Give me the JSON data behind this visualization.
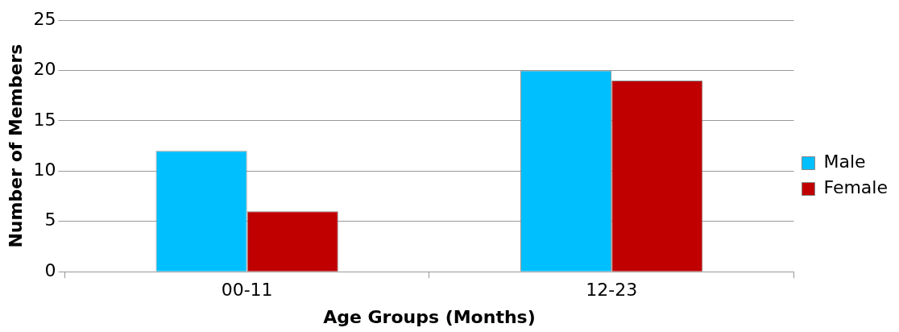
{
  "chart_data": {
    "type": "bar",
    "xlabel": "Age Groups (Months)",
    "ylabel": "Number of Members",
    "categories": [
      "00-11",
      "12-23"
    ],
    "series": [
      {
        "name": "Male",
        "color": "#00bfff",
        "values": [
          12,
          20
        ]
      },
      {
        "name": "Female",
        "color": "#c00000",
        "values": [
          6,
          19
        ]
      }
    ],
    "ylim": [
      0,
      25
    ],
    "yticks": [
      0,
      5,
      10,
      15,
      20,
      25
    ],
    "grid": "y",
    "legend": "right"
  }
}
